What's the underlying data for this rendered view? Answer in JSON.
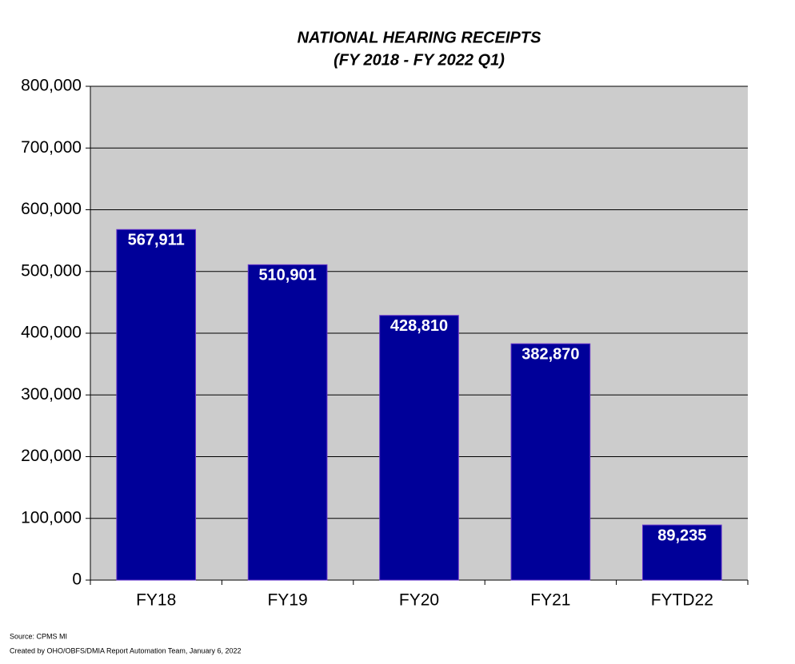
{
  "chart_data": {
    "type": "bar",
    "title": "NATIONAL HEARING RECEIPTS",
    "subtitle": "(FY 2018 - FY 2022 Q1)",
    "categories": [
      "FY18",
      "FY19",
      "FY20",
      "FY21",
      "FYTD22"
    ],
    "values": [
      567911,
      510901,
      428810,
      382870,
      89235
    ],
    "value_labels": [
      "567,911",
      "510,901",
      "428,810",
      "382,870",
      "89,235"
    ],
    "color": "#000099",
    "ylim": [
      0,
      800000
    ],
    "yticks": [
      0,
      {
        "value": 100000,
        "label": "100,000"
      },
      {
        "value": 200000,
        "label": "200,000"
      },
      {
        "value": 300000,
        "label": "300,000"
      },
      {
        "value": 400000,
        "label": "400,000"
      },
      {
        "value": 500000,
        "label": "500,000"
      },
      {
        "value": 600000,
        "label": "600,000"
      },
      {
        "value": 700000,
        "label": "700,000"
      },
      {
        "value": 800000,
        "label": "800,000"
      }
    ],
    "grid": true,
    "source": "Source: CPMS MI",
    "credit": "Created by OHO/OBFS/DMIA Report Automation Team, January  6, 2022"
  }
}
